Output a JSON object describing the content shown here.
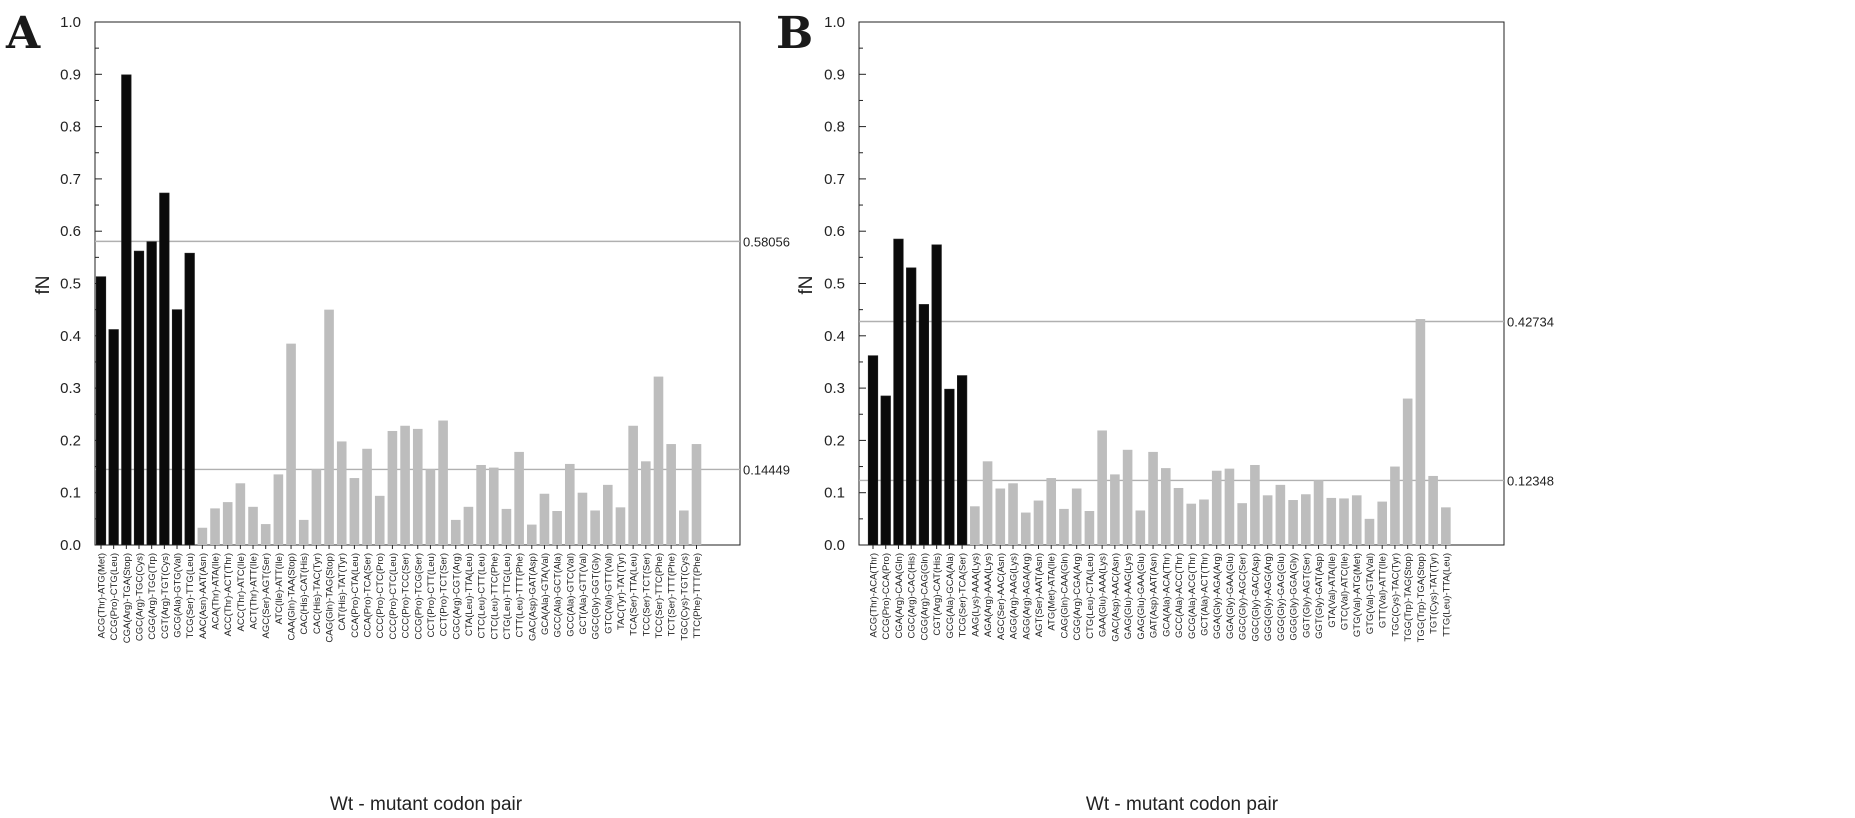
{
  "chart_data": [
    {
      "type": "bar",
      "panel": "A",
      "xlabel": "Wt - mutant codon pair",
      "ylabel": "fN",
      "ylim": [
        0,
        1.0
      ],
      "yticks": [
        "0.0",
        "0.1",
        "0.2",
        "0.3",
        "0.4",
        "0.5",
        "0.6",
        "0.7",
        "0.8",
        "0.9",
        "1.0"
      ],
      "reference_lines": [
        {
          "value": 0.58056,
          "label": "0.58056"
        },
        {
          "value": 0.14449,
          "label": "0.14449"
        }
      ],
      "colors": {
        "group1": "#0a0a0a",
        "group2": "#bdbdbd",
        "refline": "#b0b0b0",
        "axis": "#222222"
      },
      "categories": [
        "ACG(Thr)-ATG(Met)",
        "CCG(Pro)-CTG(Leu)",
        "CGA(Arg)-TGA(Stop)",
        "CGC(Arg)-TGC(Cys)",
        "CGG(Arg)-TGG(Trp)",
        "CGT(Arg)-TGT(Cys)",
        "GCG(Ala)-GTG(Val)",
        "TCG(Ser)-TTG(Leu)",
        "AAC(Asn)-AAT(Asn)",
        "ACA(Thr)-ATA(Ile)",
        "ACC(Thr)-ACT(Thr)",
        "ACC(Thr)-ATC(Ile)",
        "ACT(Thr)-ATT(Ile)",
        "AGC(Ser)-AGT(Ser)",
        "ATC(Ile)-ATT(Ile)",
        "CAA(Gln)-TAA(Stop)",
        "CAC(His)-CAT(His)",
        "CAC(His)-TAC(Tyr)",
        "CAG(Gln)-TAG(Stop)",
        "CAT(His)-TAT(Tyr)",
        "CCA(Pro)-CTA(Leu)",
        "CCA(Pro)-TCA(Ser)",
        "CCC(Pro)-CTC(Pro)",
        "CCC(Pro)-CTC(Leu)",
        "CCC(Pro)-TCC(Ser)",
        "CCG(Pro)-TCG(Ser)",
        "CCT(Pro)-CTT(Leu)",
        "CCT(Pro)-TCT(Ser)",
        "CGC(Arg)-CGT(Arg)",
        "CTA(Leu)-TTA(Leu)",
        "CTC(Leu)-CTT(Leu)",
        "CTC(Leu)-TTC(Phe)",
        "CTG(Leu)-TTG(Leu)",
        "CTT(Leu)-TTT(Phe)",
        "GAC(Asp)-GAT(Asp)",
        "GCA(Ala)-GTA(Val)",
        "GCC(Ala)-GCT(Ala)",
        "GCC(Ala)-GTC(Val)",
        "GCT(Ala)-GTT(Val)",
        "GGC(Gly)-GGT(Gly)",
        "GTC(Val)-GTT(Val)",
        "TAC(Tyr)-TAT(Tyr)",
        "TCA(Ser)-TTA(Leu)",
        "TCC(Ser)-TCT(Ser)",
        "TCC(Ser)-TTC(Phe)",
        "TCT(Ser)-TTT(Phe)",
        "TGC(Cys)-TGT(Cys)",
        "TTC(Phe)-TTT(Phe)"
      ],
      "values": [
        0.513,
        0.412,
        0.899,
        0.562,
        0.58,
        0.673,
        0.45,
        0.558,
        0.033,
        0.07,
        0.082,
        0.118,
        0.073,
        0.04,
        0.135,
        0.385,
        0.048,
        0.145,
        0.45,
        0.198,
        0.128,
        0.184,
        0.094,
        0.218,
        0.228,
        0.222,
        0.145,
        0.238,
        0.048,
        0.073,
        0.153,
        0.148,
        0.069,
        0.178,
        0.039,
        0.098,
        0.065,
        0.155,
        0.1,
        0.066,
        0.115,
        0.072,
        0.228,
        0.16,
        0.322,
        0.193,
        0.066,
        0.193
      ],
      "group": [
        1,
        1,
        1,
        1,
        1,
        1,
        1,
        1,
        2,
        2,
        2,
        2,
        2,
        2,
        2,
        2,
        2,
        2,
        2,
        2,
        2,
        2,
        2,
        2,
        2,
        2,
        2,
        2,
        2,
        2,
        2,
        2,
        2,
        2,
        2,
        2,
        2,
        2,
        2,
        2,
        2,
        2,
        2,
        2,
        2,
        2,
        2,
        2
      ]
    },
    {
      "type": "bar",
      "panel": "B",
      "xlabel": "Wt - mutant codon pair",
      "ylabel": "fN",
      "ylim": [
        0,
        1.0
      ],
      "yticks": [
        "0.0",
        "0.1",
        "0.2",
        "0.3",
        "0.4",
        "0.5",
        "0.6",
        "0.7",
        "0.8",
        "0.9",
        "1.0"
      ],
      "reference_lines": [
        {
          "value": 0.42734,
          "label": "0.42734"
        },
        {
          "value": 0.12348,
          "label": "0.12348"
        }
      ],
      "colors": {
        "group1": "#0a0a0a",
        "group2": "#bdbdbd",
        "refline": "#b0b0b0",
        "axis": "#222222"
      },
      "categories": [
        "ACG(Thr)-ACA(Thr)",
        "CCG(Pro)-CCA(Pro)",
        "CGA(Arg)-CAA(Gln)",
        "CGC(Arg)-CAC(His)",
        "CGG(Arg)-CAG(Gln)",
        "CGT(Arg)-CAT(His)",
        "GCG(Ala)-GCA(Ala)",
        "TCG(Ser)-TCA(Ser)",
        "AAG(Lys)-AAA(Lys)",
        "AGA(Arg)-AAA(Lys)",
        "AGC(Ser)-AAC(Asn)",
        "AGG(Arg)-AAG(Lys)",
        "AGG(Arg)-AGA(Arg)",
        "AGT(Ser)-AAT(Asn)",
        "ATG(Met)-ATA(Ile)",
        "CAG(Gln)-CAA(Gln)",
        "CGG(Arg)-CGA(Arg)",
        "CTG(Leu)-CTA(Leu)",
        "GAA(Glu)-AAA(Lys)",
        "GAC(Asp)-AAC(Asn)",
        "GAG(Glu)-AAG(Lys)",
        "GAG(Glu)-GAA(Glu)",
        "GAT(Asp)-AAT(Asn)",
        "GCA(Ala)-ACA(Thr)",
        "GCC(Ala)-ACC(Thr)",
        "GCG(Ala)-ACG(Thr)",
        "GCT(Ala)-ACT(Thr)",
        "GGA(Gly)-AGA(Arg)",
        "GGA(Gly)-GAA(Glu)",
        "GGC(Gly)-AGC(Ser)",
        "GGC(Gly)-GAC(Asp)",
        "GGG(Gly)-AGG(Arg)",
        "GGG(Gly)-GAG(Glu)",
        "GGG(Gly)-GGA(Gly)",
        "GGT(Gly)-AGT(Ser)",
        "GGT(Gly)-GAT(Asp)",
        "GTA(Val)-ATA(Ile)",
        "GTC(Val)-ATC(Ile)",
        "GTG(Val)-ATG(Met)",
        "GTG(Val)-GTA(Val)",
        "GTT(Val)-ATT(Ile)",
        "TGC(Cys)-TAC(Tyr)",
        "TGG(Trp)-TAG(Stop)",
        "TGG(Trp)-TGA(Stop)",
        "TGT(Cys)-TAT(Tyr)",
        "TTG(Leu)-TTA(Leu)"
      ],
      "values": [
        0.362,
        0.285,
        0.585,
        0.53,
        0.46,
        0.574,
        0.298,
        0.324,
        0.074,
        0.16,
        0.108,
        0.118,
        0.062,
        0.085,
        0.128,
        0.069,
        0.108,
        0.065,
        0.219,
        0.135,
        0.182,
        0.066,
        0.178,
        0.147,
        0.109,
        0.079,
        0.087,
        0.142,
        0.146,
        0.08,
        0.153,
        0.095,
        0.115,
        0.086,
        0.097,
        0.124,
        0.09,
        0.089,
        0.095,
        0.05,
        0.083,
        0.15,
        0.28,
        0.432,
        0.132,
        0.072
      ],
      "group": [
        1,
        1,
        1,
        1,
        1,
        1,
        1,
        1,
        2,
        2,
        2,
        2,
        2,
        2,
        2,
        2,
        2,
        2,
        2,
        2,
        2,
        2,
        2,
        2,
        2,
        2,
        2,
        2,
        2,
        2,
        2,
        2,
        2,
        2,
        2,
        2,
        2,
        2,
        2,
        2,
        2,
        2,
        2,
        2,
        2,
        2
      ]
    }
  ]
}
